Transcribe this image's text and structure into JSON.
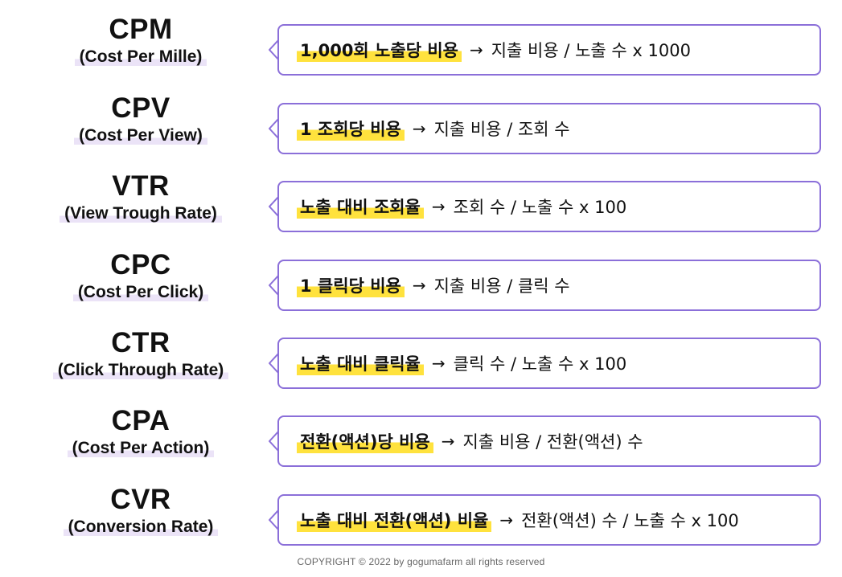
{
  "metrics": [
    {
      "abbr": "CPM",
      "full": "(Cost Per Mille)",
      "definition": "1,000회 노출당 비용",
      "arrow": "→",
      "formula": "지출 비용 / 노출 수 x 1000"
    },
    {
      "abbr": "CPV",
      "full": "(Cost Per View)",
      "definition": "1 조회당 비용",
      "arrow": "→",
      "formula": "지출 비용 / 조회 수"
    },
    {
      "abbr": "VTR",
      "full": "(View Trough Rate)",
      "definition": "노출 대비 조회율",
      "arrow": "→",
      "formula": "조회 수 / 노출 수 x 100"
    },
    {
      "abbr": "CPC",
      "full": "(Cost Per Click)",
      "definition": "1 클릭당 비용",
      "arrow": "→",
      "formula": "지출 비용 / 클릭 수"
    },
    {
      "abbr": "CTR",
      "full": "(Click Through Rate)",
      "definition": "노출 대비 클릭율",
      "arrow": "→",
      "formula": "클릭 수 / 노출 수 x 100"
    },
    {
      "abbr": "CPA",
      "full": "(Cost Per Action)",
      "definition": "전환(액션)당 비용",
      "arrow": "→",
      "formula": "지출 비용 / 전환(액션) 수"
    },
    {
      "abbr": "CVR",
      "full": "(Conversion Rate)",
      "definition": "노출 대비 전환(액션) 비율",
      "arrow": "→",
      "formula": "전환(액션) 수 / 노출 수 x 100"
    }
  ],
  "footer": {
    "copyright": "COPYRIGHT © 2022 by gogumafarm all rights reserved"
  },
  "colors": {
    "bubble_border": "#8b6fd9",
    "definition_highlight": "#ffe23d",
    "term_highlight": "#ebe3f7",
    "text": "#111111"
  }
}
